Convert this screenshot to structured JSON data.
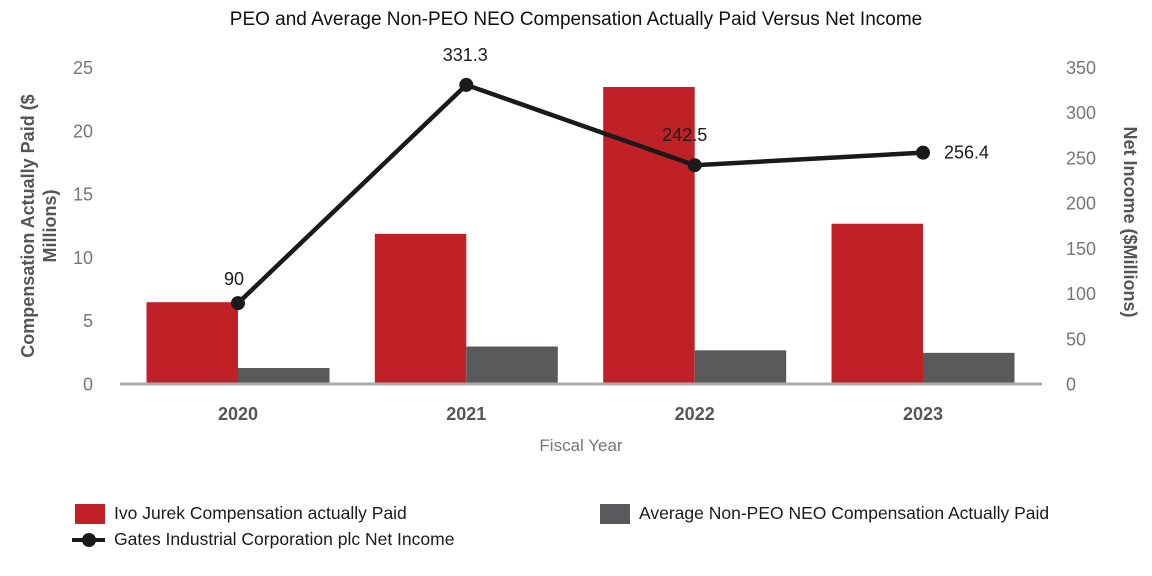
{
  "chart_data": {
    "type": "combo",
    "title": "PEO and Average Non-PEO NEO Compensation Actually Paid Versus Net Income",
    "categories": [
      "2020",
      "2021",
      "2022",
      "2023"
    ],
    "series": [
      {
        "name": "Ivo Jurek Compensation actually Paid",
        "type": "bar",
        "axis": "left",
        "color": "#BF2127",
        "values": [
          6.5,
          11.9,
          23.5,
          12.7
        ]
      },
      {
        "name": "Average Non-PEO NEO Compensation Actually Paid",
        "type": "bar",
        "axis": "left",
        "color": "#58595B",
        "values": [
          1.3,
          3.0,
          2.7,
          2.5
        ]
      },
      {
        "name": "Gates Industrial Corporation plc Net Income",
        "type": "line",
        "axis": "right",
        "color": "#1A1A1A",
        "values": [
          90,
          331.3,
          242.5,
          256.4
        ],
        "point_labels": [
          "90",
          "331.3",
          "242.5",
          "256.4"
        ]
      }
    ],
    "xlabel": "Fiscal Year",
    "ylabel_left_lines": [
      "Compensation Actually Paid ($",
      "Millions)"
    ],
    "ylabel_right": "Net Income ($Millions)",
    "yticks_left": [
      "0",
      "5",
      "10",
      "15",
      "20",
      "25"
    ],
    "yticks_right": [
      "0",
      "50",
      "100",
      "150",
      "200",
      "250",
      "300",
      "350"
    ],
    "ylim_left": [
      0,
      25
    ],
    "ylim_right": [
      0,
      350
    ],
    "grid": false,
    "legend_position": "bottom",
    "axis_line_color": "#ABABAB"
  }
}
